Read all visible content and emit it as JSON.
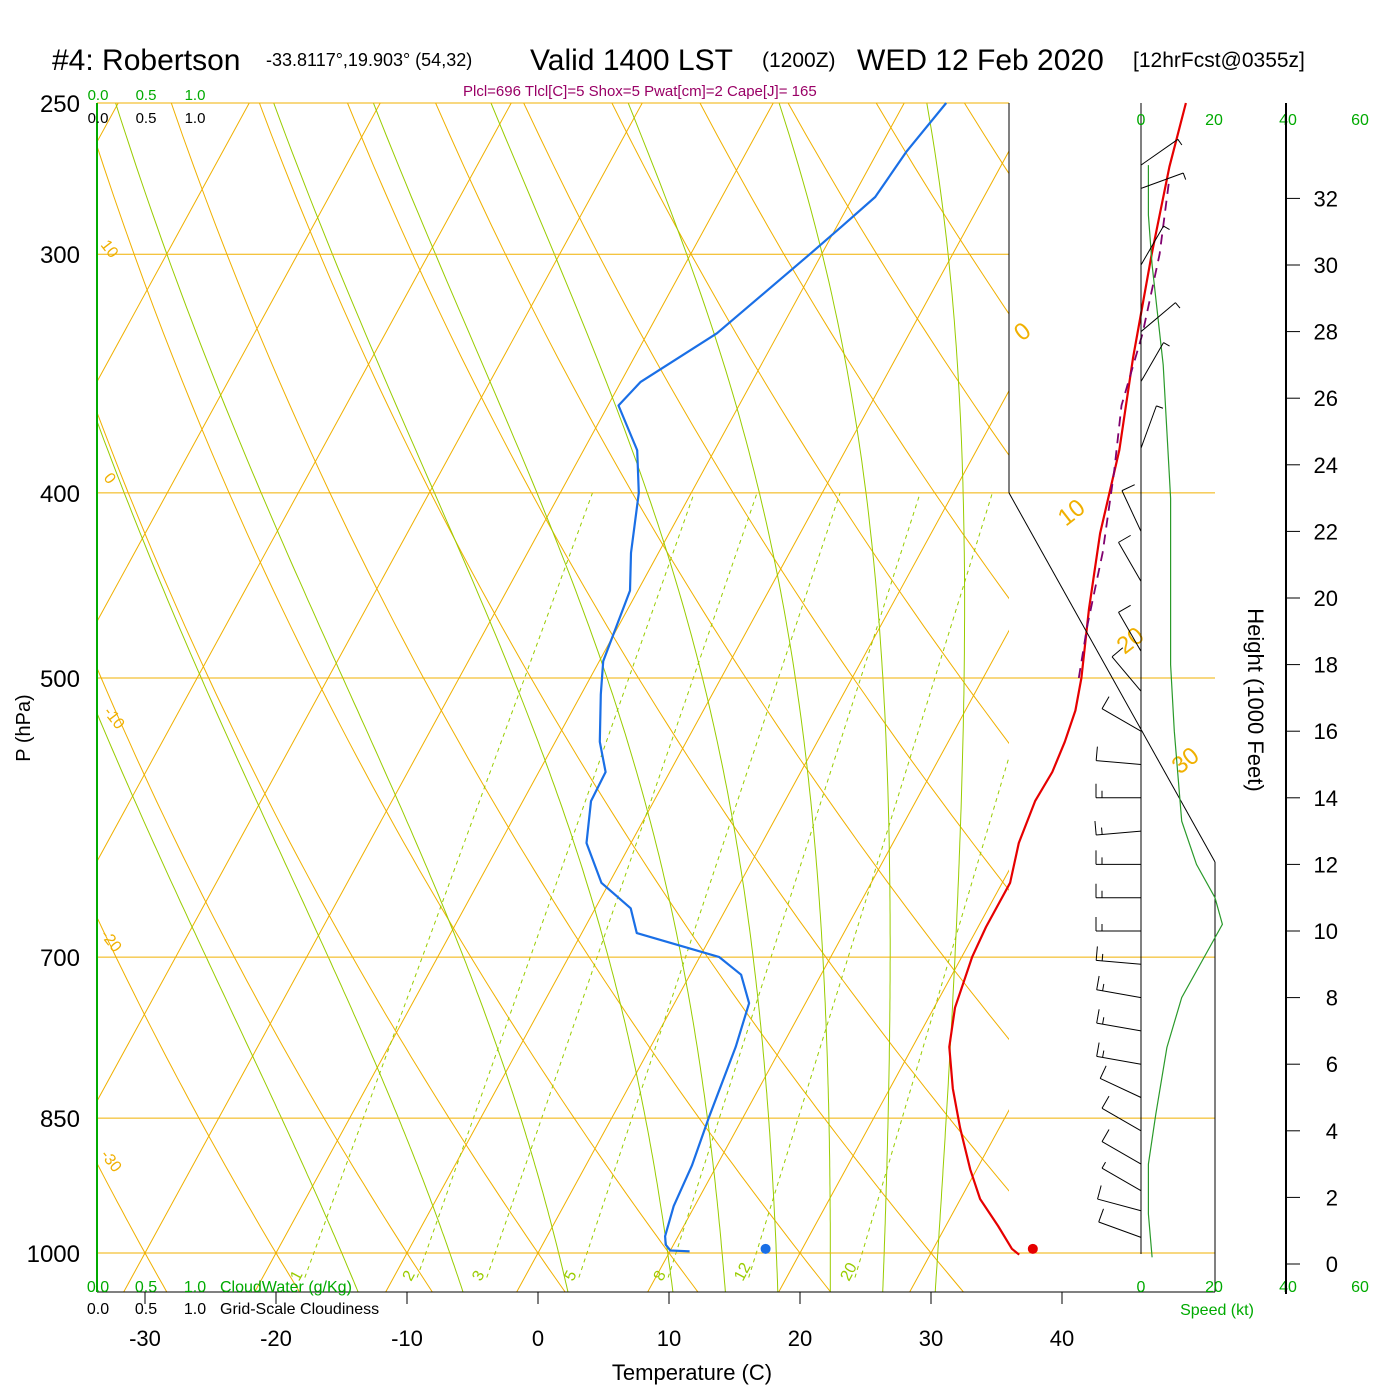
{
  "header": {
    "station": "#4: Robertson",
    "coords": "-33.8117°,19.903° (54,32)",
    "valid": "Valid 1400 LST",
    "utc": "(1200Z)",
    "date": "WED 12 Feb 2020",
    "fcst": "[12hrFcst@0355z]",
    "indices": "Plcl=696 Tlcl[C]=5 Shox=5 Pwat[cm]=2 Cape[J]= 165"
  },
  "colors": {
    "temperature": "#e60000",
    "dewpoint": "#1a6fe6",
    "parcel": "#80006e",
    "isotherm": "#f0b000",
    "dry_adiabat": "#f0b000",
    "moist_adiabat": "#99cc00",
    "mixing_ratio": "#99cc00",
    "green_text": "#00aa00",
    "indices_text": "#990066"
  },
  "chart_data": {
    "type": "line",
    "title": "",
    "xlabel": "Temperature (C)",
    "ylabel": "P (hPa)",
    "y2label": "Height (1000 Feet)",
    "x_ticks": [
      "-30",
      "-20",
      "-10",
      "0",
      "10",
      "20",
      "30",
      "40"
    ],
    "pressure_ticks": [
      "250",
      "300",
      "400",
      "500",
      "700",
      "850",
      "1000"
    ],
    "height_ticks": [
      "0",
      "2",
      "4",
      "6",
      "8",
      "10",
      "12",
      "14",
      "16",
      "18",
      "20",
      "22",
      "24",
      "26",
      "28",
      "30",
      "32"
    ],
    "temp_range": [
      -33,
      45
    ],
    "pressure_range": [
      1030,
      250
    ],
    "skewed_isotherm_labels": [
      "0",
      "10",
      "20",
      "30"
    ],
    "left_isotherm_labels": [
      "10",
      "0",
      "-10",
      "-20",
      "-30"
    ],
    "mixing_ratio_labels": [
      "1",
      "2",
      "3",
      "5",
      "8",
      "12",
      "20"
    ],
    "series": [
      {
        "name": "Temperature",
        "points": [
          [
            36.8,
            1002
          ],
          [
            36.0,
            995
          ],
          [
            34.0,
            968
          ],
          [
            31.5,
            937
          ],
          [
            29.5,
            904
          ],
          [
            27.0,
            860
          ],
          [
            24.8,
            820
          ],
          [
            22.8,
            780
          ],
          [
            21.6,
            744
          ],
          [
            20.8,
            700
          ],
          [
            20.6,
            675
          ],
          [
            20.6,
            640
          ],
          [
            19.6,
            610
          ],
          [
            19.1,
            580
          ],
          [
            19.2,
            560
          ],
          [
            18.9,
            540
          ],
          [
            18.4,
            520
          ],
          [
            17.5,
            500
          ],
          [
            15.2,
            460
          ],
          [
            12.9,
            420
          ],
          [
            10.9,
            380
          ],
          [
            8.1,
            340
          ],
          [
            5.2,
            300
          ],
          [
            2.9,
            270
          ],
          [
            1.5,
            250
          ]
        ]
      },
      {
        "name": "Dewpoint",
        "points": [
          [
            11.5,
            998
          ],
          [
            10.0,
            997
          ],
          [
            9.4,
            990
          ],
          [
            9.0,
            980
          ],
          [
            8.4,
            945
          ],
          [
            8.1,
            900
          ],
          [
            7.4,
            850
          ],
          [
            6.5,
            780
          ],
          [
            5.7,
            740
          ],
          [
            3.9,
            715
          ],
          [
            1.5,
            700
          ],
          [
            -5.8,
            680
          ],
          [
            -7.3,
            660
          ],
          [
            -10.6,
            640
          ],
          [
            -13.4,
            610
          ],
          [
            -14.8,
            580
          ],
          [
            -14.9,
            560
          ],
          [
            -16.6,
            540
          ],
          [
            -18.5,
            510
          ],
          [
            -19.7,
            490
          ],
          [
            -20.6,
            450
          ],
          [
            -22.1,
            430
          ],
          [
            -24.0,
            400
          ],
          [
            -25.9,
            380
          ],
          [
            -29.2,
            360
          ],
          [
            -28.5,
            350
          ],
          [
            -24.7,
            330
          ],
          [
            -20.9,
            300
          ],
          [
            -19.6,
            290
          ],
          [
            -18.3,
            280
          ],
          [
            -17.8,
            265
          ],
          [
            -16.8,
            250
          ]
        ]
      },
      {
        "name": "Parcel",
        "points": [
          [
            17.3,
            500
          ],
          [
            15.8,
            470
          ],
          [
            13.9,
            430
          ],
          [
            11.4,
            390
          ],
          [
            9.2,
            360
          ],
          [
            7.8,
            330
          ],
          [
            5.8,
            300
          ],
          [
            3.5,
            275
          ]
        ]
      }
    ],
    "surface_temperature": 37.6,
    "surface_dewpoint": 17.2,
    "surface_pressure": 995,
    "legend_cloudwater": {
      "label": "CloudWater (g/Kg)",
      "ticks": [
        "0.0",
        "0.5",
        "1.0"
      ]
    },
    "legend_cloudiness": {
      "label": "Grid-Scale Cloudiness",
      "ticks": [
        "0.0",
        "0.5",
        "1.0"
      ]
    },
    "wind_panel": {
      "speed_label": "Speed (kt)",
      "speed_ticks": [
        "0",
        "20",
        "40",
        "60"
      ],
      "speed_profile_kt": [
        [
          0.2,
          3
        ],
        [
          1.5,
          2
        ],
        [
          3.0,
          2
        ],
        [
          4.5,
          4
        ],
        [
          6.5,
          7
        ],
        [
          8.0,
          11
        ],
        [
          9.4,
          18
        ],
        [
          10.2,
          22
        ],
        [
          11.0,
          20
        ],
        [
          12.0,
          15
        ],
        [
          13.3,
          11
        ],
        [
          16.0,
          9
        ],
        [
          18.0,
          8
        ],
        [
          21.0,
          8
        ],
        [
          23.0,
          8
        ],
        [
          25.0,
          7
        ],
        [
          27.0,
          6
        ],
        [
          30.0,
          3
        ],
        [
          31.5,
          2
        ],
        [
          33.0,
          2
        ]
      ],
      "barbs": [
        {
          "h": 0.8,
          "dir": 290,
          "spd": 12
        },
        {
          "h": 1.6,
          "dir": 285,
          "spd": 10
        },
        {
          "h": 2.2,
          "dir": 300,
          "spd": 5
        },
        {
          "h": 3.0,
          "dir": 300,
          "spd": 10
        },
        {
          "h": 4.0,
          "dir": 300,
          "spd": 10
        },
        {
          "h": 5.0,
          "dir": 295,
          "spd": 10
        },
        {
          "h": 6.0,
          "dir": 280,
          "spd": 15
        },
        {
          "h": 7.0,
          "dir": 280,
          "spd": 15
        },
        {
          "h": 8.0,
          "dir": 280,
          "spd": 15
        },
        {
          "h": 9.0,
          "dir": 275,
          "spd": 15
        },
        {
          "h": 10.0,
          "dir": 270,
          "spd": 15
        },
        {
          "h": 11.0,
          "dir": 270,
          "spd": 15
        },
        {
          "h": 12.0,
          "dir": 270,
          "spd": 15
        },
        {
          "h": 13.0,
          "dir": 265,
          "spd": 15
        },
        {
          "h": 14.0,
          "dir": 270,
          "spd": 15
        },
        {
          "h": 15.0,
          "dir": 275,
          "spd": 10
        },
        {
          "h": 16.0,
          "dir": 300,
          "spd": 10
        },
        {
          "h": 17.2,
          "dir": 320,
          "spd": 10
        },
        {
          "h": 18.4,
          "dir": 330,
          "spd": 10
        },
        {
          "h": 20.5,
          "dir": 330,
          "spd": 10
        },
        {
          "h": 22.0,
          "dir": 335,
          "spd": 10
        },
        {
          "h": 24.5,
          "dir": 20,
          "spd": 5
        },
        {
          "h": 26.5,
          "dir": 30,
          "spd": 5
        },
        {
          "h": 28.0,
          "dir": 50,
          "spd": 5
        },
        {
          "h": 30.0,
          "dir": 30,
          "spd": 5
        },
        {
          "h": 32.3,
          "dir": 70,
          "spd": 5
        },
        {
          "h": 33.0,
          "dir": 55,
          "spd": 5
        }
      ]
    }
  }
}
